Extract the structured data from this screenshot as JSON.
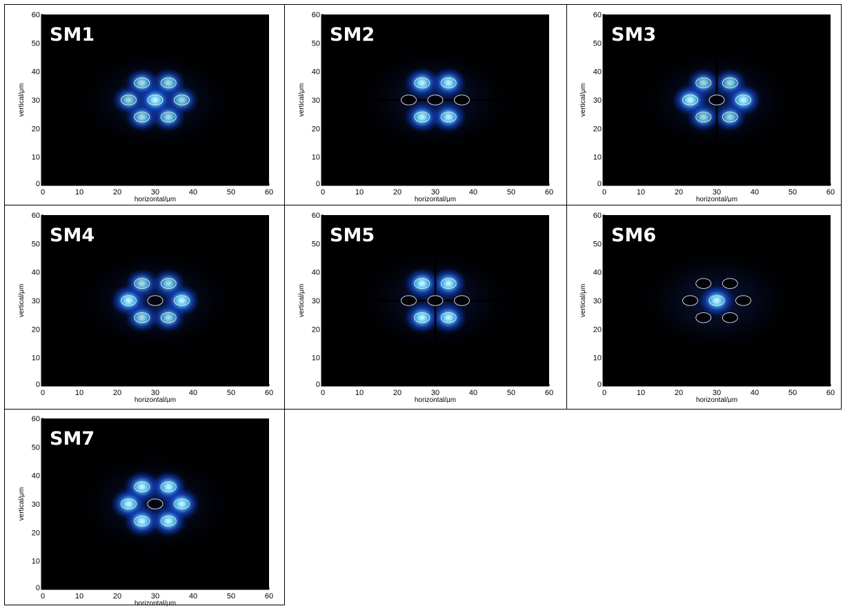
{
  "colors": {
    "background": "#000000",
    "glow_inner": "#ffffff",
    "glow_mid": "#5fd8ff",
    "glow_outer": "#1040c8",
    "core_outline": "#ffffff"
  },
  "chart_data": [
    {
      "type": "heatmap",
      "mode_label": "SM1",
      "xlabel": "horizontal/μm",
      "ylabel": "vertical/μm",
      "xlim": [
        0,
        60
      ],
      "ylim": [
        0,
        60
      ],
      "x_ticks": [
        "0",
        "10",
        "20",
        "30",
        "40",
        "50",
        "60"
      ],
      "y_ticks": [
        "0",
        "10",
        "20",
        "30",
        "40",
        "50",
        "60"
      ],
      "cores": [
        {
          "x": 30,
          "y": 30,
          "dark": false
        },
        {
          "x": 26.5,
          "y": 36,
          "dark": false
        },
        {
          "x": 33.5,
          "y": 36,
          "dark": false
        },
        {
          "x": 23,
          "y": 30,
          "dark": false
        },
        {
          "x": 37,
          "y": 30,
          "dark": false
        },
        {
          "x": 26.5,
          "y": 24,
          "dark": false
        },
        {
          "x": 33.5,
          "y": 24,
          "dark": false
        }
      ],
      "lobes": [
        {
          "x": 30,
          "y": 30,
          "i": 1.0
        },
        {
          "x": 26.5,
          "y": 36,
          "i": 0.75
        },
        {
          "x": 33.5,
          "y": 36,
          "i": 0.75
        },
        {
          "x": 23,
          "y": 30,
          "i": 0.7
        },
        {
          "x": 37,
          "y": 30,
          "i": 0.7
        },
        {
          "x": 26.5,
          "y": 24,
          "i": 0.75
        },
        {
          "x": 33.5,
          "y": 24,
          "i": 0.75
        }
      ],
      "dark_lines": []
    },
    {
      "type": "heatmap",
      "mode_label": "SM2",
      "xlabel": "horizontal/μm",
      "ylabel": "vertical/μm",
      "xlim": [
        0,
        60
      ],
      "ylim": [
        0,
        60
      ],
      "x_ticks": [
        "0",
        "10",
        "20",
        "30",
        "40",
        "50",
        "60"
      ],
      "y_ticks": [
        "0",
        "10",
        "20",
        "30",
        "40",
        "50",
        "60"
      ],
      "cores": [
        {
          "x": 30,
          "y": 30,
          "dark": true
        },
        {
          "x": 26.5,
          "y": 36,
          "dark": false
        },
        {
          "x": 33.5,
          "y": 36,
          "dark": false
        },
        {
          "x": 23,
          "y": 30,
          "dark": true
        },
        {
          "x": 37,
          "y": 30,
          "dark": true
        },
        {
          "x": 26.5,
          "y": 24,
          "dark": false
        },
        {
          "x": 33.5,
          "y": 24,
          "dark": false
        }
      ],
      "lobes": [
        {
          "x": 26.5,
          "y": 36,
          "i": 0.95
        },
        {
          "x": 33.5,
          "y": 36,
          "i": 0.95
        },
        {
          "x": 26.5,
          "y": 24,
          "i": 0.95
        },
        {
          "x": 33.5,
          "y": 24,
          "i": 0.95
        }
      ],
      "dark_lines": [
        "h"
      ]
    },
    {
      "type": "heatmap",
      "mode_label": "SM3",
      "xlabel": "horizontal/μm",
      "ylabel": "vertical/μm",
      "xlim": [
        0,
        60
      ],
      "ylim": [
        0,
        60
      ],
      "x_ticks": [
        "0",
        "10",
        "20",
        "30",
        "40",
        "50",
        "60"
      ],
      "y_ticks": [
        "0",
        "10",
        "20",
        "30",
        "40",
        "50",
        "60"
      ],
      "cores": [
        {
          "x": 30,
          "y": 30,
          "dark": true
        },
        {
          "x": 26.5,
          "y": 36,
          "dark": false
        },
        {
          "x": 33.5,
          "y": 36,
          "dark": false
        },
        {
          "x": 23,
          "y": 30,
          "dark": false
        },
        {
          "x": 37,
          "y": 30,
          "dark": false
        },
        {
          "x": 26.5,
          "y": 24,
          "dark": false
        },
        {
          "x": 33.5,
          "y": 24,
          "dark": false
        }
      ],
      "lobes": [
        {
          "x": 23,
          "y": 30,
          "i": 1.0
        },
        {
          "x": 37,
          "y": 30,
          "i": 1.0
        },
        {
          "x": 26.5,
          "y": 36,
          "i": 0.7
        },
        {
          "x": 33.5,
          "y": 36,
          "i": 0.7
        },
        {
          "x": 26.5,
          "y": 24,
          "i": 0.7
        },
        {
          "x": 33.5,
          "y": 24,
          "i": 0.7
        }
      ],
      "dark_lines": [
        "v"
      ]
    },
    {
      "type": "heatmap",
      "mode_label": "SM4",
      "xlabel": "horizontal/μm",
      "ylabel": "vertical/μm",
      "xlim": [
        0,
        60
      ],
      "ylim": [
        0,
        60
      ],
      "x_ticks": [
        "0",
        "10",
        "20",
        "30",
        "40",
        "50",
        "60"
      ],
      "y_ticks": [
        "0",
        "10",
        "20",
        "30",
        "40",
        "50",
        "60"
      ],
      "cores": [
        {
          "x": 30,
          "y": 30,
          "dark": true
        },
        {
          "x": 26.5,
          "y": 36,
          "dark": false
        },
        {
          "x": 33.5,
          "y": 36,
          "dark": false
        },
        {
          "x": 23,
          "y": 30,
          "dark": false
        },
        {
          "x": 37,
          "y": 30,
          "dark": false
        },
        {
          "x": 26.5,
          "y": 24,
          "dark": false
        },
        {
          "x": 33.5,
          "y": 24,
          "dark": false
        }
      ],
      "lobes": [
        {
          "x": 23,
          "y": 30,
          "i": 1.0
        },
        {
          "x": 37,
          "y": 30,
          "i": 1.0
        },
        {
          "x": 26.5,
          "y": 36,
          "i": 0.75
        },
        {
          "x": 33.5,
          "y": 36,
          "i": 0.75
        },
        {
          "x": 26.5,
          "y": 24,
          "i": 0.75
        },
        {
          "x": 33.5,
          "y": 24,
          "i": 0.75
        }
      ],
      "dark_lines": []
    },
    {
      "type": "heatmap",
      "mode_label": "SM5",
      "xlabel": "horizontal/μm",
      "ylabel": "vertical/μm",
      "xlim": [
        0,
        60
      ],
      "ylim": [
        0,
        60
      ],
      "x_ticks": [
        "0",
        "10",
        "20",
        "30",
        "40",
        "50",
        "60"
      ],
      "y_ticks": [
        "0",
        "10",
        "20",
        "30",
        "40",
        "50",
        "60"
      ],
      "cores": [
        {
          "x": 30,
          "y": 30,
          "dark": true
        },
        {
          "x": 26.5,
          "y": 36,
          "dark": false
        },
        {
          "x": 33.5,
          "y": 36,
          "dark": false
        },
        {
          "x": 23,
          "y": 30,
          "dark": true
        },
        {
          "x": 37,
          "y": 30,
          "dark": true
        },
        {
          "x": 26.5,
          "y": 24,
          "dark": false
        },
        {
          "x": 33.5,
          "y": 24,
          "dark": false
        }
      ],
      "lobes": [
        {
          "x": 26.5,
          "y": 36,
          "i": 1.0
        },
        {
          "x": 33.5,
          "y": 36,
          "i": 1.0
        },
        {
          "x": 26.5,
          "y": 24,
          "i": 1.0
        },
        {
          "x": 33.5,
          "y": 24,
          "i": 1.0
        }
      ],
      "dark_lines": [
        "h",
        "v"
      ]
    },
    {
      "type": "heatmap",
      "mode_label": "SM6",
      "xlabel": "horizontal/μm",
      "ylabel": "vertical/μm",
      "xlim": [
        0,
        60
      ],
      "ylim": [
        0,
        60
      ],
      "x_ticks": [
        "0",
        "10",
        "20",
        "30",
        "40",
        "50",
        "60"
      ],
      "y_ticks": [
        "0",
        "10",
        "20",
        "30",
        "40",
        "50",
        "60"
      ],
      "cores": [
        {
          "x": 30,
          "y": 30,
          "dark": false
        },
        {
          "x": 26.5,
          "y": 36,
          "dark": true
        },
        {
          "x": 33.5,
          "y": 36,
          "dark": true
        },
        {
          "x": 23,
          "y": 30,
          "dark": true
        },
        {
          "x": 37,
          "y": 30,
          "dark": true
        },
        {
          "x": 26.5,
          "y": 24,
          "dark": true
        },
        {
          "x": 33.5,
          "y": 24,
          "dark": true
        }
      ],
      "lobes": [
        {
          "x": 30,
          "y": 30,
          "i": 1.0
        }
      ],
      "dark_lines": []
    },
    {
      "type": "heatmap",
      "mode_label": "SM7",
      "xlabel": "horizontal/μm",
      "ylabel": "vertical/μm",
      "xlim": [
        0,
        60
      ],
      "ylim": [
        0,
        60
      ],
      "x_ticks": [
        "0",
        "10",
        "20",
        "30",
        "40",
        "50",
        "60"
      ],
      "y_ticks": [
        "0",
        "10",
        "20",
        "30",
        "40",
        "50",
        "60"
      ],
      "cores": [
        {
          "x": 30,
          "y": 30,
          "dark": true
        },
        {
          "x": 26.5,
          "y": 36,
          "dark": false
        },
        {
          "x": 33.5,
          "y": 36,
          "dark": false
        },
        {
          "x": 23,
          "y": 30,
          "dark": false
        },
        {
          "x": 37,
          "y": 30,
          "dark": false
        },
        {
          "x": 26.5,
          "y": 24,
          "dark": false
        },
        {
          "x": 33.5,
          "y": 24,
          "dark": false
        }
      ],
      "lobes": [
        {
          "x": 26.5,
          "y": 36,
          "i": 1.0
        },
        {
          "x": 33.5,
          "y": 36,
          "i": 1.0
        },
        {
          "x": 23,
          "y": 30,
          "i": 1.0
        },
        {
          "x": 37,
          "y": 30,
          "i": 1.0
        },
        {
          "x": 26.5,
          "y": 24,
          "i": 1.0
        },
        {
          "x": 33.5,
          "y": 24,
          "i": 1.0
        }
      ],
      "dark_lines": []
    }
  ]
}
